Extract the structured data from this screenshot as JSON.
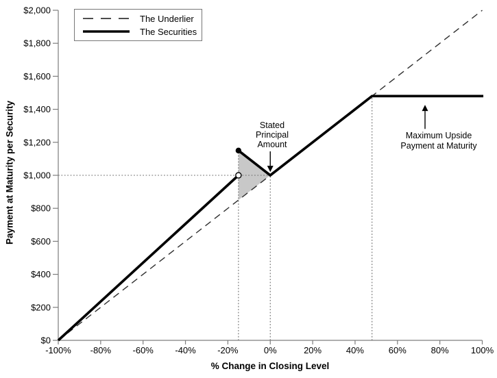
{
  "chart_data": {
    "type": "line",
    "title": "",
    "xlabel": "% Change in Closing Level",
    "ylabel": "Payment at Maturity per Security",
    "xlim": [
      -100,
      100
    ],
    "ylim": [
      0,
      2000
    ],
    "grid": false,
    "legend_position": "top-left",
    "x_ticks": [
      -100,
      -80,
      -60,
      -40,
      -20,
      0,
      20,
      40,
      60,
      80,
      100
    ],
    "x_tick_labels": [
      "-100%",
      "-80%",
      "-60%",
      "-40%",
      "-20%",
      "0%",
      "20%",
      "40%",
      "60%",
      "80%",
      "100%"
    ],
    "y_ticks": [
      0,
      200,
      400,
      600,
      800,
      1000,
      1200,
      1400,
      1600,
      1800,
      2000
    ],
    "y_tick_labels": [
      "$0",
      "$200",
      "$400",
      "$600",
      "$800",
      "$1,000",
      "$1,200",
      "$1,400",
      "$1,600",
      "$1,800",
      "$2,000"
    ],
    "series": [
      {
        "name": "The Underlier",
        "style": "dashed",
        "points": [
          [
            -100,
            0
          ],
          [
            100,
            2000
          ]
        ]
      },
      {
        "name": "The Securities",
        "style": "solid-thick",
        "segments": [
          [
            [
              -100,
              0
            ],
            [
              -15,
              1000
            ]
          ],
          [
            [
              -15,
              1150
            ],
            [
              0,
              1000
            ],
            [
              48,
              1480
            ],
            [
              100.5,
              1480
            ]
          ]
        ],
        "markers": [
          {
            "x": -15,
            "y": 1000,
            "type": "open"
          },
          {
            "x": -15,
            "y": 1150,
            "type": "filled"
          }
        ]
      }
    ],
    "key_levels": {
      "stated_principal_amount": 1000,
      "buffer_level_pct": -15,
      "absolute_return_peak": 1150,
      "cap_level_pct": 48,
      "maximum_upside_payment": 1480
    },
    "shaded_region": {
      "fill": "#c8c8c8",
      "points": [
        [
          -15,
          1150
        ],
        [
          -15,
          850
        ],
        [
          0,
          1000
        ]
      ]
    },
    "reference_lines": [
      {
        "type": "h",
        "y": 1000,
        "x1": -100,
        "x2": 0
      },
      {
        "type": "v",
        "x": -15,
        "y1": 0,
        "y2": 1150
      },
      {
        "type": "v",
        "x": 0,
        "y1": 0,
        "y2": 1000
      },
      {
        "type": "v",
        "x": 48,
        "y1": 0,
        "y2": 1480
      }
    ],
    "annotations": [
      {
        "id": "stated-principal",
        "lines": [
          "Stated",
          "Principal",
          "Amount"
        ],
        "arrow": {
          "x_pct": 0,
          "from_val": 1145,
          "tip_val": 1020,
          "direction": "down"
        }
      },
      {
        "id": "maximum-upside",
        "lines": [
          "Maximum Upside",
          "Payment at Maturity"
        ],
        "arrow": {
          "x_pct": 73,
          "from_val": 1281,
          "tip_val": 1427,
          "direction": "up"
        }
      }
    ],
    "colors": {
      "securities_line": "#000000",
      "underlier_line": "#2e2e2e",
      "axis": "#7d7d7d",
      "guide": "#6b6b6b",
      "shade": "#c8c8c8",
      "text": "#000000"
    }
  }
}
